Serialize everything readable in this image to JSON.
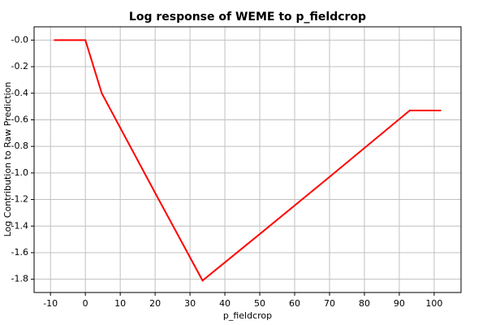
{
  "chart_data": {
    "type": "line",
    "title": "Log response of WEME to p_fieldcrop",
    "x_label": "p_fieldcrop",
    "y_label": "Log Contribution to Raw Prediction",
    "x": [
      -9,
      0,
      2,
      4.7,
      10,
      20,
      33.6,
      50,
      70,
      93,
      102
    ],
    "series": [
      {
        "color": "#ff0000",
        "values": [
          0,
          0,
          -0.17,
          -0.4,
          -0.66,
          -1.15,
          -1.81,
          -1.46,
          -1.03,
          -0.53,
          -0.53
        ]
      }
    ],
    "xlim": [
      -14.7,
      107.7
    ],
    "xticks": [
      -10,
      0,
      10,
      20,
      30,
      40,
      50,
      60,
      70,
      80,
      90,
      100
    ],
    "ylim": [
      -1.9,
      0.1
    ],
    "yticks": [
      {
        "value": 0,
        "label": "-0.0"
      },
      -0.2,
      -0.4,
      -0.6,
      -0.8,
      {
        "value": -1,
        "label": "-1.0"
      },
      -1.2,
      -1.4,
      -1.6,
      -1.8
    ],
    "grid": true
  }
}
